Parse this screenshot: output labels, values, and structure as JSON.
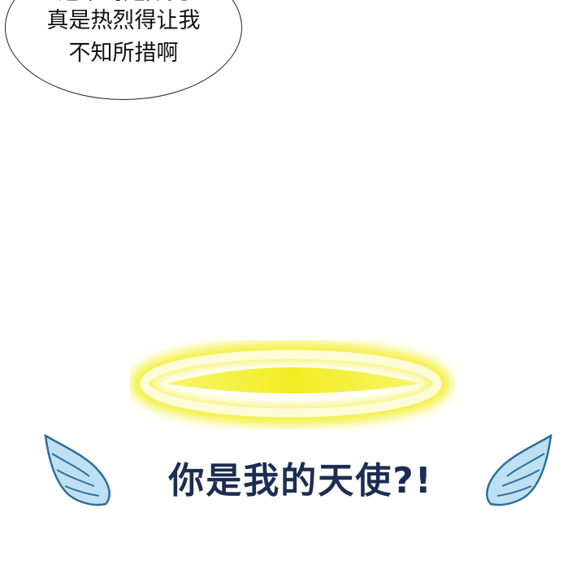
{
  "speech_bubble": {
    "lines": [
      "这个吻是如此",
      "真是热烈得让我",
      "不知所措啊"
    ]
  },
  "caption": {
    "text": "你是我的天使?!"
  },
  "colors": {
    "halo_glow": "#f6f35a",
    "halo_inner": "#f3ef2e",
    "caption_text": "#1d2d52",
    "wing_fill": "#bfe0f2",
    "wing_stroke": "#2a6f9a"
  },
  "icons": {
    "halo": "halo-icon",
    "left_wing": "left-wing-icon",
    "right_wing": "right-wing-icon"
  }
}
